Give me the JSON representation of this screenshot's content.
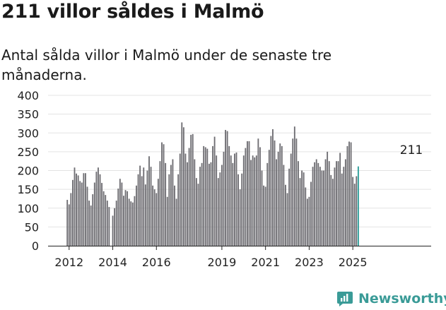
{
  "header": {
    "title": "211 villor såldes i Malmö",
    "subtitle": "Antal sålda villor i Malmö under de senaste tre månaderna."
  },
  "footer": {
    "brand": "Newsworthy"
  },
  "colors": {
    "bar": "#6e6d72",
    "highlight": "#2a9d98",
    "grid": "#e3e3e3",
    "axis": "#222222",
    "brand": "#3a9b97"
  },
  "chart_data": {
    "type": "bar",
    "title": "211 villor såldes i Malmö",
    "subtitle": "Antal sålda villor i Malmö under de senaste tre månaderna.",
    "xlabel": "",
    "ylabel": "",
    "ylim": [
      0,
      400
    ],
    "yticks": [
      0,
      50,
      100,
      150,
      200,
      250,
      300,
      350,
      400
    ],
    "x_tick_labels": [
      {
        "label": "2012",
        "month": "2012-01"
      },
      {
        "label": "2014",
        "month": "2014-01"
      },
      {
        "label": "2016",
        "month": "2016-01"
      },
      {
        "label": "2019",
        "month": "2019-01"
      },
      {
        "label": "2021",
        "month": "2021-01"
      },
      {
        "label": "2023",
        "month": "2023-01"
      },
      {
        "label": "2025",
        "month": "2025-01"
      }
    ],
    "grid": true,
    "highlight_label": "211",
    "first_month": "2011-12",
    "values": [
      122,
      110,
      140,
      175,
      208,
      192,
      187,
      172,
      168,
      193,
      193,
      157,
      120,
      107,
      137,
      168,
      197,
      208,
      190,
      167,
      145,
      135,
      120,
      103,
      0,
      80,
      100,
      120,
      152,
      178,
      168,
      133,
      148,
      145,
      125,
      118,
      115,
      132,
      160,
      190,
      213,
      185,
      208,
      163,
      200,
      238,
      210,
      160,
      150,
      140,
      178,
      225,
      275,
      270,
      220,
      130,
      190,
      215,
      230,
      160,
      125,
      190,
      245,
      328,
      315,
      245,
      222,
      260,
      295,
      297,
      230,
      180,
      165,
      210,
      220,
      265,
      262,
      258,
      218,
      222,
      265,
      290,
      240,
      180,
      195,
      215,
      250,
      308,
      305,
      265,
      240,
      220,
      245,
      248,
      190,
      150,
      192,
      240,
      260,
      278,
      278,
      228,
      240,
      235,
      240,
      285,
      262,
      200,
      160,
      157,
      220,
      255,
      292,
      310,
      280,
      230,
      250,
      272,
      265,
      215,
      162,
      140,
      205,
      245,
      285,
      317,
      285,
      225,
      180,
      200,
      195,
      155,
      125,
      130,
      170,
      210,
      222,
      230,
      220,
      210,
      200,
      200,
      230,
      250,
      225,
      188,
      178,
      208,
      225,
      225,
      247,
      192,
      210,
      230,
      265,
      277,
      275,
      183,
      165,
      185,
      211
    ]
  }
}
